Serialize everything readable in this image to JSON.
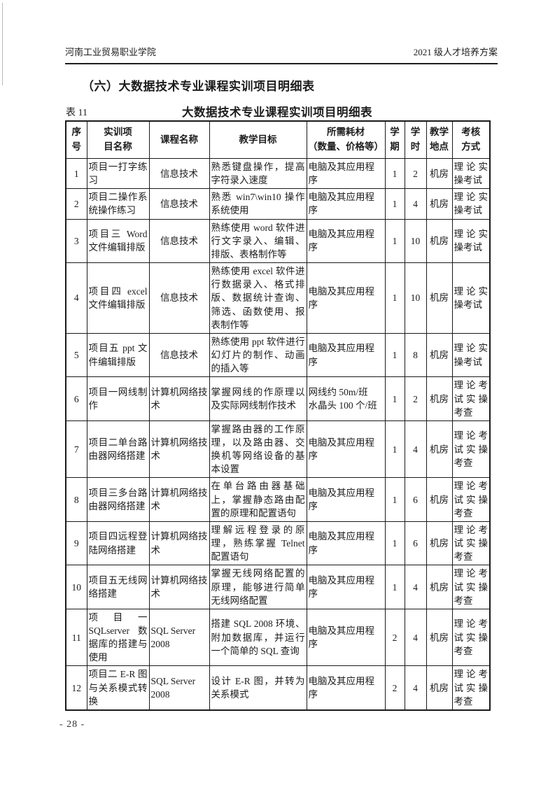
{
  "header": {
    "left": "河南工业贸易职业学院",
    "right": "2021 级人才培养方案"
  },
  "section_title": "（六）大数据技术专业课程实训项目明细表",
  "table_caption": {
    "label": "表 11",
    "title": "大数据技术专业课程实训项目明细表"
  },
  "table": {
    "headers": [
      "序\n号",
      "实训项\n目名称",
      "课程名称",
      "教学目标",
      "所需耗材\n（数量、价格等）",
      "学\n期",
      "学\n时",
      "教学\n地点",
      "考核\n方式"
    ],
    "rows": [
      [
        "1",
        "项目一打字练习",
        "信息技术",
        "熟悉键盘操作，提高字符录入速度",
        "电脑及其应用程序",
        "1",
        "2",
        "机房",
        "理论实操考试"
      ],
      [
        "2",
        "项目二操作系统操作练习",
        "信息技术",
        "熟悉 win7\\win10 操作系统使用",
        "电脑及其应用程序",
        "1",
        "4",
        "机房",
        "理论实操考试"
      ],
      [
        "3",
        "项目三 Word 文件编辑排版",
        "信息技术",
        "熟练使用 word 软件进行文字录入、编辑、排版、表格制作等",
        "电脑及其应用程序",
        "1",
        "10",
        "机房",
        "理论实操考试"
      ],
      [
        "4",
        "项目四 excel 文件编辑排版",
        "信息技术",
        "熟练使用 excel 软件进行数据录入、格式排版、数据统计查询、筛选、函数使用、报表制作等",
        "电脑及其应用程序",
        "1",
        "10",
        "机房",
        "理论实操考试"
      ],
      [
        "5",
        "项目五 ppt 文件编辑排版",
        "信息技术",
        "熟练使用 ppt 软件进行幻灯片的制作、动画的插入等",
        "电脑及其应用程序",
        "1",
        "8",
        "机房",
        "理论实操考试"
      ],
      [
        "6",
        "项目一网线制作",
        "计算机网络技术",
        "掌握网线的作原理以及实际网线制作技术",
        "网线约 50m/班\n水晶头 100 个/班",
        "1",
        "2",
        "机房",
        "理论考试实操考查"
      ],
      [
        "7",
        "项目二单台路由器网络搭建",
        "计算机网络技术",
        "掌握路由器的工作原理，以及路由器、交换机等网络设备的基本设置",
        "电脑及其应用程序",
        "1",
        "4",
        "机房",
        "理论考试实操考查"
      ],
      [
        "8",
        "项目三多台路由器网络搭建",
        "计算机网络技术",
        "在单台路由器基础上，掌握静态路由配置的原理和配置语句",
        "电脑及其应用程序",
        "1",
        "6",
        "机房",
        "理论考试实操考查"
      ],
      [
        "9",
        "项目四远程登陆网络搭建",
        "计算机网络技术",
        "理解远程登录的原理，熟练掌握 Telnet 配置语句",
        "电脑及其应用程序",
        "1",
        "6",
        "机房",
        "理论考试实操考查"
      ],
      [
        "10",
        "项目五无线网络搭建",
        "计算机网络技术",
        "掌握无线网络配置的原理，能够进行简单无线网络配置",
        "电脑及其应用程序",
        "1",
        "4",
        "机房",
        "理论考试实操考查"
      ],
      [
        "11",
        "项目一 SQLserver 数据库的搭建与使用",
        "SQL Server 2008",
        "搭建 SQL 2008 环境、附加数据库，并运行一个简单的 SQL 查询",
        "电脑及其应用程序",
        "2",
        "4",
        "机房",
        "理论考试实操考查"
      ],
      [
        "12",
        "项目二 E-R 图与关系模式转换",
        "SQL Server 2008",
        "设计 E-R 图，并转为关系模式",
        "电脑及其应用程序",
        "2",
        "4",
        "机房",
        "理论考试实操考查"
      ]
    ]
  },
  "footer": {
    "page_number": "- 28 -"
  }
}
